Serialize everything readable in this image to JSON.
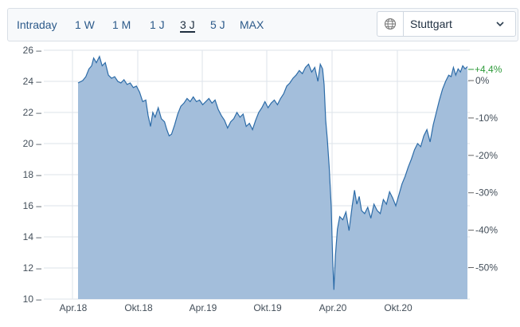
{
  "toolbar": {
    "tabs": [
      {
        "label": "Intraday"
      },
      {
        "label": "1 W"
      },
      {
        "label": "1 M"
      },
      {
        "label": "1 J"
      },
      {
        "label": "3 J",
        "active": true
      },
      {
        "label": "5 J"
      },
      {
        "label": "MAX"
      }
    ],
    "exchange": {
      "value": "Stuttgart",
      "icon": "globe-icon"
    }
  },
  "chart_data": {
    "type": "area",
    "title": "",
    "xlabel": "",
    "ylabel": "",
    "x_ticks": [
      "Apr.18",
      "Okt.18",
      "Apr.19",
      "Okt.19",
      "Apr.20",
      "Okt.20"
    ],
    "y_left_ticks": [
      10,
      12,
      14,
      16,
      18,
      20,
      22,
      24,
      26
    ],
    "y_left_labels": [
      "10 –",
      "12 –",
      "14 –",
      "16 –",
      "18 –",
      "20 –",
      "22 –",
      "24 –",
      "26 –"
    ],
    "y_right_ticks": [
      "0%",
      "-10%",
      "-20%",
      "-30%",
      "-40%",
      "-50%"
    ],
    "ylim": [
      10,
      26
    ],
    "base_value": 24.05,
    "change_label": "+4,4%",
    "grid": true,
    "colors": {
      "fill": "#a3bedb",
      "line": "#2d6ca8",
      "positive": "#2e9a3a",
      "grid": "#dde3ea"
    },
    "series": [
      {
        "values": [
          [
            0.0,
            23.9
          ],
          [
            0.012,
            24.05
          ],
          [
            0.02,
            24.3
          ],
          [
            0.028,
            24.8
          ],
          [
            0.035,
            25.0
          ],
          [
            0.04,
            25.5
          ],
          [
            0.047,
            25.2
          ],
          [
            0.055,
            25.6
          ],
          [
            0.062,
            25.0
          ],
          [
            0.07,
            25.2
          ],
          [
            0.078,
            24.4
          ],
          [
            0.086,
            24.2
          ],
          [
            0.094,
            24.3
          ],
          [
            0.102,
            24.0
          ],
          [
            0.11,
            23.9
          ],
          [
            0.118,
            24.1
          ],
          [
            0.126,
            23.8
          ],
          [
            0.134,
            23.9
          ],
          [
            0.142,
            23.6
          ],
          [
            0.15,
            23.7
          ],
          [
            0.158,
            23.3
          ],
          [
            0.166,
            22.7
          ],
          [
            0.174,
            22.8
          ],
          [
            0.18,
            21.8
          ],
          [
            0.186,
            21.1
          ],
          [
            0.192,
            22.0
          ],
          [
            0.198,
            21.7
          ],
          [
            0.206,
            22.3
          ],
          [
            0.214,
            21.6
          ],
          [
            0.222,
            21.4
          ],
          [
            0.228,
            20.9
          ],
          [
            0.234,
            20.5
          ],
          [
            0.24,
            20.6
          ],
          [
            0.248,
            21.2
          ],
          [
            0.256,
            21.9
          ],
          [
            0.264,
            22.4
          ],
          [
            0.272,
            22.6
          ],
          [
            0.28,
            22.9
          ],
          [
            0.288,
            22.7
          ],
          [
            0.296,
            23.0
          ],
          [
            0.304,
            22.7
          ],
          [
            0.312,
            22.8
          ],
          [
            0.32,
            22.5
          ],
          [
            0.328,
            22.7
          ],
          [
            0.336,
            22.9
          ],
          [
            0.344,
            22.6
          ],
          [
            0.352,
            22.8
          ],
          [
            0.36,
            22.2
          ],
          [
            0.368,
            21.8
          ],
          [
            0.376,
            21.5
          ],
          [
            0.384,
            21.0
          ],
          [
            0.392,
            21.4
          ],
          [
            0.4,
            21.6
          ],
          [
            0.408,
            22.0
          ],
          [
            0.416,
            21.7
          ],
          [
            0.424,
            21.9
          ],
          [
            0.432,
            21.1
          ],
          [
            0.44,
            21.3
          ],
          [
            0.448,
            20.9
          ],
          [
            0.456,
            21.5
          ],
          [
            0.464,
            22.0
          ],
          [
            0.472,
            22.3
          ],
          [
            0.48,
            22.7
          ],
          [
            0.488,
            22.3
          ],
          [
            0.496,
            22.6
          ],
          [
            0.504,
            22.8
          ],
          [
            0.512,
            22.5
          ],
          [
            0.52,
            22.9
          ],
          [
            0.528,
            23.2
          ],
          [
            0.536,
            23.7
          ],
          [
            0.544,
            23.9
          ],
          [
            0.552,
            24.2
          ],
          [
            0.56,
            24.4
          ],
          [
            0.568,
            24.7
          ],
          [
            0.576,
            24.5
          ],
          [
            0.584,
            24.9
          ],
          [
            0.592,
            25.1
          ],
          [
            0.6,
            24.6
          ],
          [
            0.608,
            24.9
          ],
          [
            0.616,
            24.0
          ],
          [
            0.622,
            25.1
          ],
          [
            0.628,
            24.8
          ],
          [
            0.632,
            23.8
          ],
          [
            0.636,
            21.5
          ],
          [
            0.64,
            20.3
          ],
          [
            0.645,
            18.5
          ],
          [
            0.65,
            16.0
          ],
          [
            0.654,
            12.5
          ],
          [
            0.657,
            10.6
          ],
          [
            0.661,
            12.8
          ],
          [
            0.666,
            14.5
          ],
          [
            0.672,
            15.3
          ],
          [
            0.68,
            15.1
          ],
          [
            0.688,
            15.6
          ],
          [
            0.696,
            14.4
          ],
          [
            0.704,
            16.0
          ],
          [
            0.71,
            17.0
          ],
          [
            0.716,
            16.1
          ],
          [
            0.722,
            16.6
          ],
          [
            0.728,
            15.7
          ],
          [
            0.736,
            15.5
          ],
          [
            0.744,
            15.9
          ],
          [
            0.752,
            15.2
          ],
          [
            0.76,
            16.1
          ],
          [
            0.768,
            15.7
          ],
          [
            0.776,
            15.5
          ],
          [
            0.784,
            16.4
          ],
          [
            0.792,
            16.1
          ],
          [
            0.8,
            16.9
          ],
          [
            0.808,
            16.5
          ],
          [
            0.816,
            16.0
          ],
          [
            0.824,
            16.7
          ],
          [
            0.832,
            17.4
          ],
          [
            0.84,
            17.9
          ],
          [
            0.848,
            18.5
          ],
          [
            0.856,
            19.0
          ],
          [
            0.864,
            19.6
          ],
          [
            0.872,
            20.0
          ],
          [
            0.88,
            19.8
          ],
          [
            0.888,
            20.5
          ],
          [
            0.896,
            20.9
          ],
          [
            0.904,
            20.1
          ],
          [
            0.912,
            21.2
          ],
          [
            0.92,
            22.0
          ],
          [
            0.928,
            22.8
          ],
          [
            0.936,
            23.5
          ],
          [
            0.944,
            24.0
          ],
          [
            0.952,
            24.4
          ],
          [
            0.958,
            24.3
          ],
          [
            0.964,
            24.9
          ],
          [
            0.97,
            24.4
          ],
          [
            0.976,
            24.8
          ],
          [
            0.982,
            24.6
          ],
          [
            0.988,
            25.0
          ],
          [
            0.994,
            24.8
          ],
          [
            1.0,
            24.95
          ]
        ]
      }
    ]
  }
}
